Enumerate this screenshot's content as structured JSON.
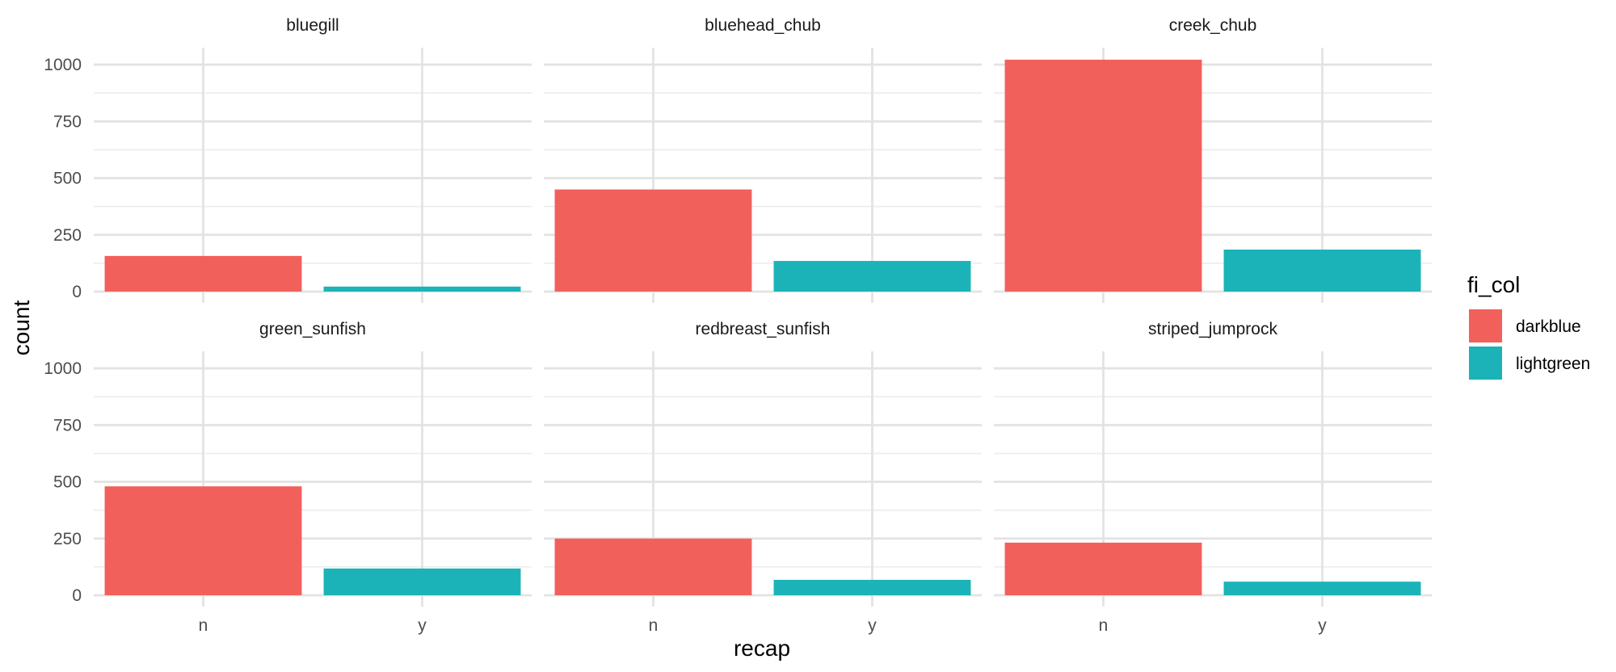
{
  "chart_data": {
    "type": "bar",
    "layout": "facet grid, 2 rows by 3 columns, shared axes",
    "xlabel": "recap",
    "ylabel": "count",
    "categories": [
      "n",
      "y"
    ],
    "yticks": [
      0,
      250,
      500,
      750,
      1000
    ],
    "ylim": [
      0,
      1075
    ],
    "grid": true,
    "legend": {
      "title": "fi_col",
      "placement": "right",
      "entries": [
        {
          "label": "darkblue",
          "color": "#F2605C"
        },
        {
          "label": "lightgreen",
          "color": "#1BB3B7"
        }
      ]
    },
    "panels": [
      {
        "title": "bluegill",
        "values": [
          157,
          22
        ]
      },
      {
        "title": "bluehead_chub",
        "values": [
          450,
          135
        ]
      },
      {
        "title": "creek_chub",
        "values": [
          1022,
          185
        ]
      },
      {
        "title": "green_sunfish",
        "values": [
          480,
          118
        ]
      },
      {
        "title": "redbreast_sunfish",
        "values": [
          250,
          68
        ]
      },
      {
        "title": "striped_jumprock",
        "values": [
          232,
          60
        ]
      }
    ]
  }
}
